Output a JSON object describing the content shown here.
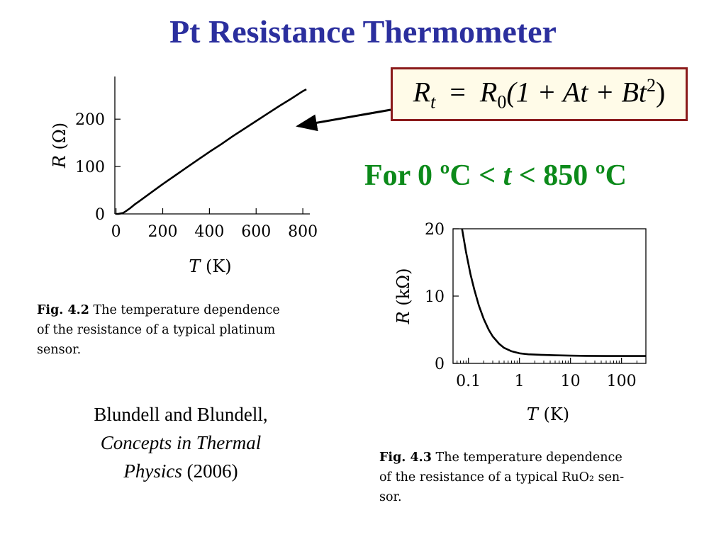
{
  "slide": {
    "title": "Pt Resistance Thermometer",
    "equation": {
      "lhs_symbol": "R",
      "lhs_sub": "t",
      "equals": "=",
      "rhs_symbol": "R",
      "rhs_sub": "0",
      "rhs_body": "(1 + At + Bt",
      "power": "2",
      "close": ")"
    },
    "range": {
      "prefix": "For 0 ºC ",
      "lt1": "<",
      "var": " t ",
      "lt2": "<",
      "suffix": " 850 ºC"
    },
    "arrow_color": "#000000",
    "citation": {
      "authors": "Blundell and Blundell,",
      "book_line1": "Concepts in Thermal",
      "book_line2": "Physics",
      "year": " (2006)"
    }
  },
  "colors": {
    "title": "#2b2f9e",
    "range": "#0c8a1a",
    "eq_border": "#8b1a1a",
    "eq_bg": "#fffbe8",
    "curve": "#000000"
  },
  "captions": {
    "fig42": {
      "label": "Fig. 4.2",
      "line1": " The temperature dependence",
      "line2": "of the resistance of a typical platinum",
      "line3": "sensor."
    },
    "fig43": {
      "label": "Fig. 4.3",
      "line1": " The temperature dependence",
      "line2": "of the resistance of a typical RuO₂ sen-",
      "line3": "sor."
    }
  },
  "chart_data": [
    {
      "type": "line",
      "title": "",
      "xlabel": "T (K)",
      "ylabel": "R (Ω)",
      "xlim": [
        -5,
        830
      ],
      "ylim": [
        0,
        290
      ],
      "xticks": [
        0,
        200,
        400,
        600,
        800
      ],
      "yticks": [
        0,
        100,
        200
      ],
      "grid": false,
      "series": [
        {
          "x": [
            0,
            10,
            20,
            30,
            40,
            60,
            80,
            100,
            150,
            200,
            250,
            300,
            350,
            400,
            450,
            500,
            550,
            600,
            650,
            700,
            750,
            800,
            815
          ],
          "y": [
            0,
            0,
            1,
            2,
            5,
            12,
            20,
            27,
            45,
            63,
            80,
            97,
            114,
            131,
            147,
            164,
            180,
            196,
            212,
            228,
            243,
            259,
            263
          ]
        }
      ]
    },
    {
      "type": "line",
      "title": "",
      "xlabel": "T (K)",
      "ylabel": "R (kΩ)",
      "xscale": "log",
      "xlim": [
        0.05,
        300
      ],
      "ylim": [
        0,
        20
      ],
      "xticks": [
        0.1,
        1,
        10,
        100
      ],
      "xtick_labels": [
        "0.1",
        "1",
        "10",
        "100"
      ],
      "yticks": [
        0,
        10,
        20
      ],
      "grid": false,
      "series": [
        {
          "x": [
            0.075,
            0.09,
            0.11,
            0.13,
            0.16,
            0.2,
            0.25,
            0.3,
            0.4,
            0.5,
            0.7,
            1,
            1.5,
            2,
            3,
            5,
            10,
            20,
            50,
            100,
            300
          ],
          "y": [
            20,
            16.5,
            13.2,
            11.0,
            8.6,
            6.6,
            5.0,
            4.0,
            2.9,
            2.3,
            1.8,
            1.5,
            1.35,
            1.3,
            1.25,
            1.2,
            1.15,
            1.12,
            1.1,
            1.1,
            1.1
          ]
        }
      ]
    }
  ]
}
